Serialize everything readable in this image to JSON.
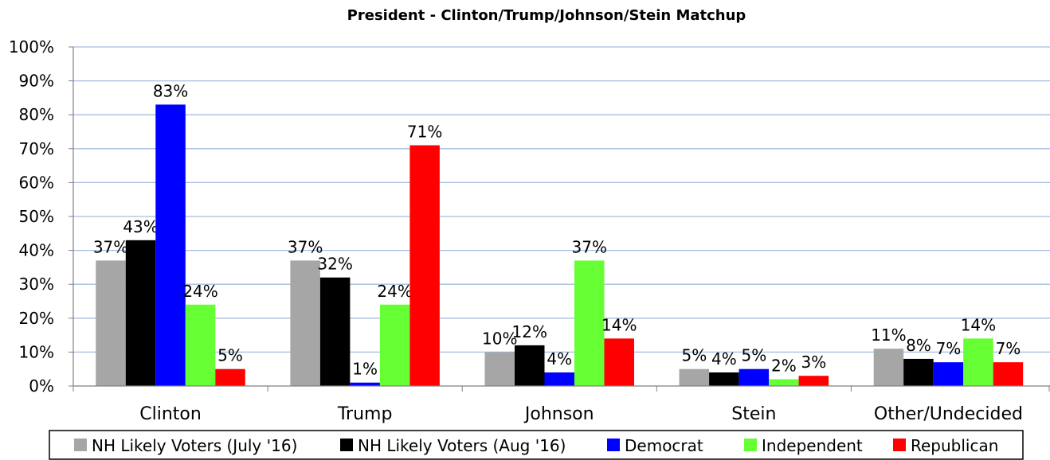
{
  "chart_data": {
    "type": "bar",
    "title": "President - Clinton/Trump/Johnson/Stein Matchup",
    "categories": [
      "Clinton",
      "Trump",
      "Johnson",
      "Stein",
      "Other/Undecided"
    ],
    "series": [
      {
        "name": "NH Likely Voters (July '16)",
        "color": "#a6a6a6",
        "values": [
          37,
          37,
          10,
          5,
          11
        ]
      },
      {
        "name": "NH Likely Voters (Aug '16)",
        "color": "#000000",
        "values": [
          43,
          32,
          12,
          4,
          8
        ]
      },
      {
        "name": "Democrat",
        "color": "#0000ff",
        "values": [
          83,
          1,
          4,
          5,
          7
        ]
      },
      {
        "name": "Independent",
        "color": "#66ff33",
        "values": [
          24,
          24,
          37,
          2,
          14
        ]
      },
      {
        "name": "Republican",
        "color": "#ff0000",
        "values": [
          5,
          71,
          14,
          3,
          7
        ]
      }
    ],
    "ylim": [
      0,
      100
    ],
    "yticks": [
      "0%",
      "10%",
      "20%",
      "30%",
      "40%",
      "50%",
      "60%",
      "70%",
      "80%",
      "90%",
      "100%"
    ],
    "value_suffix": "%",
    "grid": true,
    "legend_position": "bottom"
  }
}
